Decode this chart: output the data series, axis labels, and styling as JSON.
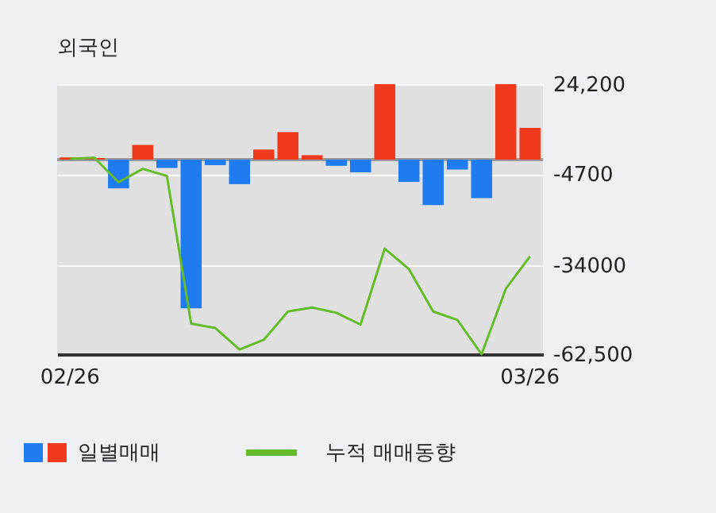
{
  "chart_data": {
    "type": "bar",
    "title": "외국인",
    "categories": [
      "02/26",
      null,
      null,
      null,
      null,
      null,
      null,
      null,
      null,
      null,
      null,
      null,
      null,
      null,
      null,
      null,
      null,
      null,
      null,
      "03/26"
    ],
    "series": [
      {
        "name": "일별매매",
        "values": [
          700,
          500,
          -9300,
          4700,
          -2700,
          -47800,
          -1800,
          -7900,
          3200,
          8800,
          1400,
          -2000,
          -4100,
          24200,
          -7200,
          -14600,
          -3200,
          -12400,
          24200,
          10200
        ],
        "colors": [
          "#f03a1e",
          "#f03a1e",
          "#1e7bf0",
          "#f03a1e",
          "#1e7bf0",
          "#1e7bf0",
          "#1e7bf0",
          "#1e7bf0",
          "#f03a1e",
          "#f03a1e",
          "#f03a1e",
          "#1e7bf0",
          "#1e7bf0",
          "#f03a1e",
          "#1e7bf0",
          "#1e7bf0",
          "#1e7bf0",
          "#1e7bf0",
          "#f03a1e",
          "#f03a1e"
        ]
      },
      {
        "name": "누적 매매동향",
        "type": "line",
        "color": "#66bb2a",
        "values": [
          200,
          600,
          -7300,
          -3000,
          -5300,
          -52700,
          -54100,
          -61000,
          -57900,
          -48800,
          -47500,
          -49200,
          -53000,
          -28600,
          -35200,
          -48800,
          -51500,
          -62500,
          -41500,
          -31100
        ]
      }
    ],
    "ylim": [
      -62500,
      24200
    ],
    "yticks": [
      {
        "value": 24200,
        "label": "24,200"
      },
      -4700,
      -34000,
      {
        "value": -62500,
        "label": "-62,500"
      }
    ],
    "ref_lines": [
      {
        "axis": "y",
        "value": 0,
        "color": "#999999"
      }
    ],
    "grid": "y",
    "legend": "bottom"
  }
}
